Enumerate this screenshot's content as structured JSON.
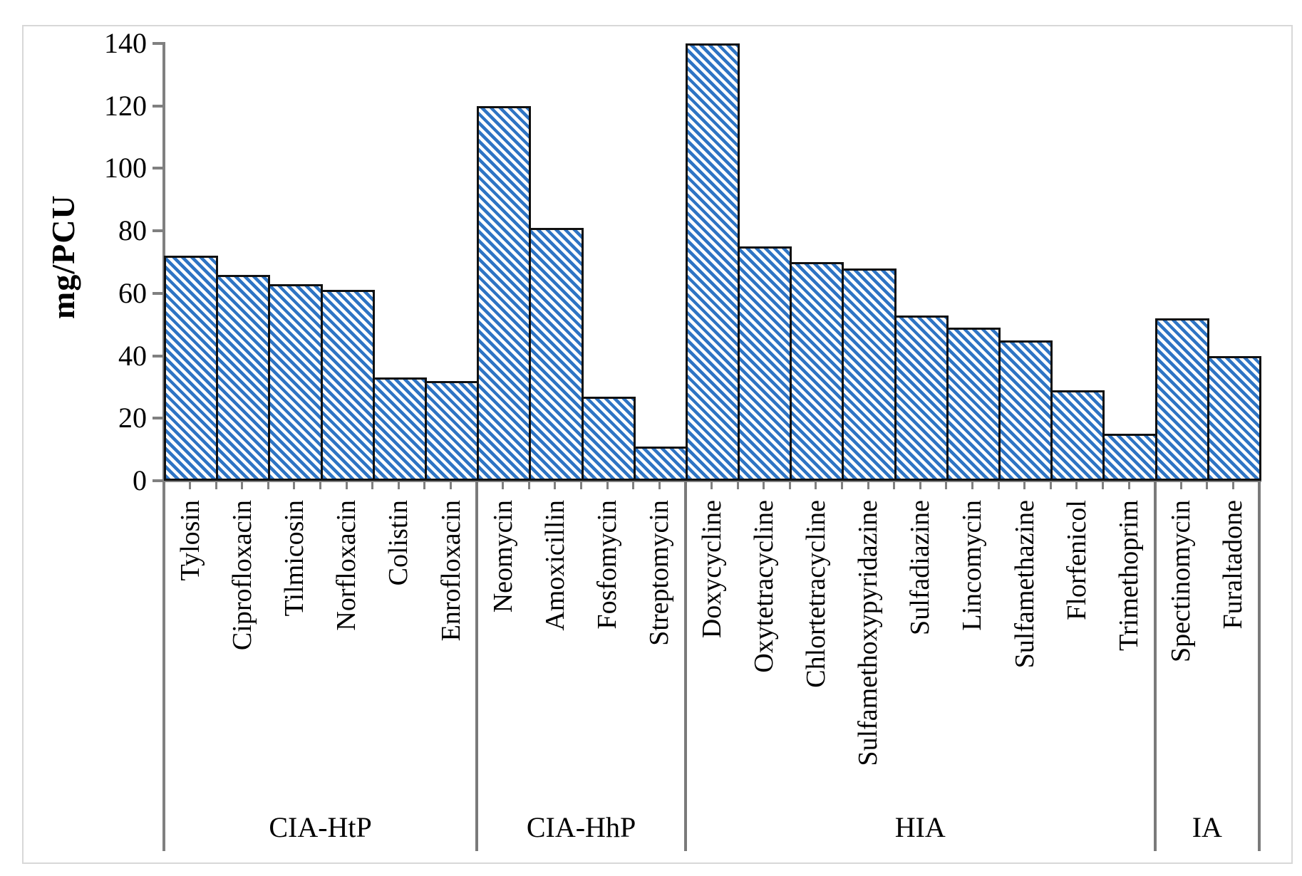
{
  "chart_data": {
    "type": "bar",
    "title": "",
    "xlabel": "",
    "ylabel": "mg/PCU",
    "ylim": [
      0,
      140
    ],
    "ytick_step": 20,
    "yticks": [
      0,
      20,
      40,
      60,
      80,
      100,
      120,
      140
    ],
    "grid": false,
    "legend": null,
    "bar_style": {
      "fill_pattern": "diagonal-stripes",
      "stripe_color": "#2E74C4",
      "stripe_background": "#FFFFFF",
      "border_color": "#111111"
    },
    "colors": {
      "axis": "#808080",
      "group_separator": "#7A7A7A",
      "figure_frame": "#D8D8D8",
      "text": "#000000"
    },
    "categories": [
      "Tylosin",
      "Ciprofloxacin",
      "Tilmicosin",
      "Norfloxacin",
      "Colistin",
      "Enrofloxacin",
      "Neomycin",
      "Amoxicillin",
      "Fosfomycin",
      "Streptomycin",
      "Doxycycline",
      "Oxytetracycline",
      "Chlortetracycline",
      "Sulfamethoxypyridazine",
      "Sulfadiazine",
      "Lincomycin",
      "Sulfamethazine",
      "Florfenicol",
      "Trimethoprim",
      "Spectinomycin",
      "Furaltadone"
    ],
    "values": [
      72,
      66,
      63,
      61,
      33,
      32,
      120,
      81,
      27,
      11,
      140,
      75,
      70,
      68,
      53,
      49,
      45,
      29,
      15,
      52,
      40
    ],
    "series": [
      {
        "name": "mg/PCU",
        "values": [
          72,
          66,
          63,
          61,
          33,
          32,
          120,
          81,
          27,
          11,
          140,
          75,
          70,
          68,
          53,
          49,
          45,
          29,
          15,
          52,
          40
        ]
      }
    ],
    "groups": [
      {
        "label": "CIA-HtP",
        "count": 6,
        "categories": [
          "Tylosin",
          "Ciprofloxacin",
          "Tilmicosin",
          "Norfloxacin",
          "Colistin",
          "Enrofloxacin"
        ]
      },
      {
        "label": "CIA-HhP",
        "count": 4,
        "categories": [
          "Neomycin",
          "Amoxicillin",
          "Fosfomycin",
          "Streptomycin"
        ]
      },
      {
        "label": "HIA",
        "count": 9,
        "categories": [
          "Doxycycline",
          "Oxytetracycline",
          "Chlortetracycline",
          "Sulfamethoxypyridazine",
          "Sulfadiazine",
          "Lincomycin",
          "Sulfamethazine",
          "Florfenicol",
          "Trimethoprim"
        ]
      },
      {
        "label": "IA",
        "count": 2,
        "categories": [
          "Spectinomycin",
          "Furaltadone"
        ]
      }
    ]
  }
}
